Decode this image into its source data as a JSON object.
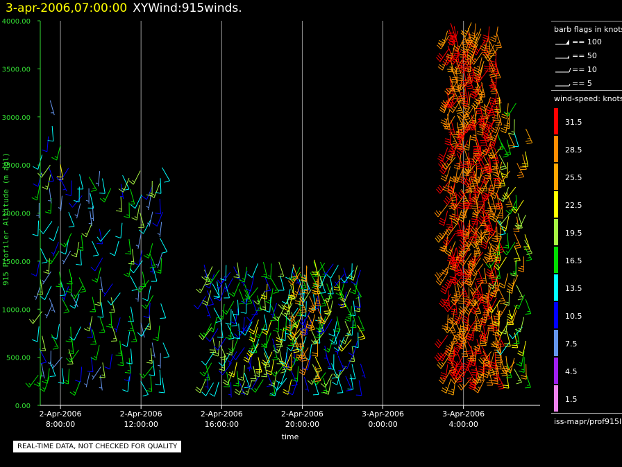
{
  "header": {
    "datetime": "3-apr-2006,07:00:00",
    "product": "XYWind:915winds."
  },
  "legend_flags": {
    "title": "barb flags in knots",
    "items": [
      "== 100",
      "== 50",
      "== 10",
      "== 5"
    ]
  },
  "legend_speed": {
    "title": "wind-speed: knots",
    "items": [
      {
        "label": "31.5",
        "color": "#ff0000"
      },
      {
        "label": "28.5",
        "color": "#ff8c00"
      },
      {
        "label": "25.5",
        "color": "#ffa500"
      },
      {
        "label": "22.5",
        "color": "#ffff00"
      },
      {
        "label": "19.5",
        "color": "#a6f542"
      },
      {
        "label": "16.5",
        "color": "#00dd00"
      },
      {
        "label": "13.5",
        "color": "#00ffff"
      },
      {
        "label": "10.5",
        "color": "#0000ff"
      },
      {
        "label": "7.5",
        "color": "#6495ed"
      },
      {
        "label": "4.5",
        "color": "#a020f0"
      },
      {
        "label": "1.5",
        "color": "#ee82ee"
      }
    ]
  },
  "source": "iss-mapr/prof915l",
  "qc_notice": "REAL-TIME DATA, NOT CHECKED FOR QUALITY",
  "chart_data": {
    "type": "scatter",
    "ylabel": "915 Profiler Altitude (m agl)",
    "xlabel": "time",
    "ylim": [
      0,
      4000
    ],
    "yticks": [
      "0.00",
      "500.00",
      "1000.00",
      "1500.00",
      "2000.00",
      "2500.00",
      "3000.00",
      "3500.00",
      "4000.00"
    ],
    "xticks": [
      {
        "date": "2-Apr-2006",
        "time": "8:00:00"
      },
      {
        "date": "2-Apr-2006",
        "time": "12:00:00"
      },
      {
        "date": "2-Apr-2006",
        "time": "16:00:00"
      },
      {
        "date": "2-Apr-2006",
        "time": "20:00:00"
      },
      {
        "date": "3-Apr-2006",
        "time": "0:00:00"
      },
      {
        "date": "3-Apr-2006",
        "time": "4:00:00"
      }
    ],
    "xlim_hours": [
      7,
      31.8
    ],
    "grid": "vertical",
    "series": [
      {
        "start": 7.0,
        "end": 13.2,
        "step": 0.5,
        "altmin": 280,
        "altmax": 2500,
        "dz": 95,
        "speed": [
          6,
          20
        ],
        "fill": 0.55
      },
      {
        "start": 7.0,
        "end": 8.5,
        "step": 0.5,
        "altmin": 2500,
        "altmax": 3200,
        "dz": 110,
        "speed": [
          8,
          24
        ],
        "fill": 0.5
      },
      {
        "start": 15.2,
        "end": 22.8,
        "step": 0.33,
        "altmin": 270,
        "altmax": 1500,
        "dz": 85,
        "speed": [
          9,
          22
        ],
        "fill": 0.78
      },
      {
        "start": 19.5,
        "end": 20.9,
        "step": 0.4,
        "altmin": 400,
        "altmax": 1500,
        "dz": 90,
        "speed": [
          22,
          29
        ],
        "fill": 0.75
      },
      {
        "start": 27.3,
        "end": 29.8,
        "step": 0.33,
        "altmin": 300,
        "altmax": 4000,
        "dz": 55,
        "speed": [
          26,
          33
        ],
        "fill": 0.85
      },
      {
        "start": 29.8,
        "end": 31.3,
        "step": 0.4,
        "altmin": 350,
        "altmax": 3300,
        "dz": 80,
        "speed": [
          14,
          30
        ],
        "fill": 0.7
      }
    ]
  }
}
